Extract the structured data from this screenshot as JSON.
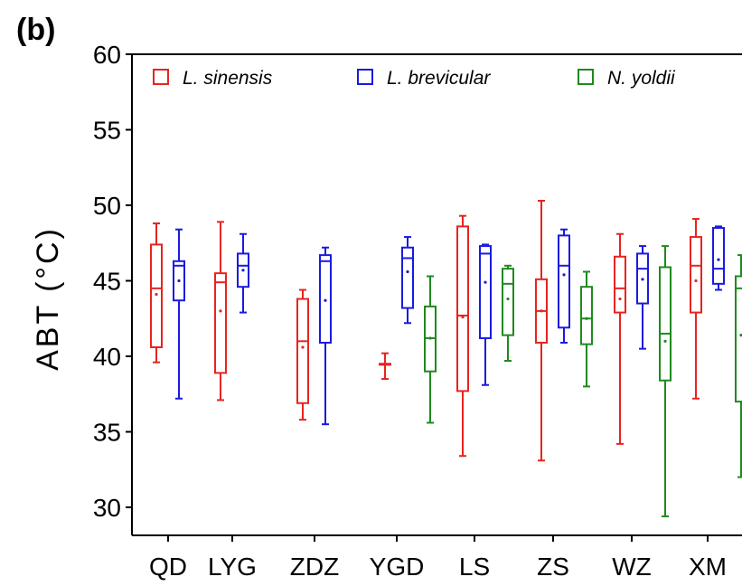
{
  "panel_label": "(b)",
  "chart_data": {
    "type": "box",
    "title": "",
    "xlabel": "",
    "ylabel": "ABT (°C)",
    "ylim": [
      30,
      60
    ],
    "yticks": [
      30,
      35,
      40,
      45,
      50,
      55,
      60
    ],
    "categories": [
      "QD",
      "LYG",
      "ZDZ",
      "YGD",
      "LS",
      "ZS",
      "WZ",
      "XM"
    ],
    "legend_position": "top",
    "series": [
      {
        "name": "L. sinensis",
        "color": "#e8231f",
        "boxes": [
          {
            "min": 39.6,
            "q1": 40.6,
            "median": 44.5,
            "mean": 44.1,
            "q3": 47.4,
            "max": 48.8
          },
          {
            "min": 37.1,
            "q1": 38.9,
            "median": 44.9,
            "mean": 43.0,
            "q3": 45.5,
            "max": 48.9
          },
          {
            "min": 35.8,
            "q1": 36.9,
            "median": 41.0,
            "mean": 40.6,
            "q3": 43.8,
            "max": 44.4
          },
          {
            "min": 38.5,
            "q1": 39.5,
            "median": 39.5,
            "mean": 39.5,
            "q3": 39.5,
            "max": 40.2
          },
          {
            "min": 33.4,
            "q1": 37.7,
            "median": 42.7,
            "mean": 42.6,
            "q3": 48.6,
            "max": 49.3
          },
          {
            "min": 33.1,
            "q1": 40.9,
            "median": 43.0,
            "mean": 43.0,
            "q3": 45.1,
            "max": 50.3
          },
          {
            "min": 34.2,
            "q1": 42.9,
            "median": 44.5,
            "mean": 43.8,
            "q3": 46.6,
            "max": 48.1
          },
          {
            "min": 37.2,
            "q1": 42.9,
            "median": 46.0,
            "mean": 45.0,
            "q3": 47.9,
            "max": 49.1
          }
        ]
      },
      {
        "name": "L. brevicular",
        "color": "#1a1adf",
        "boxes": [
          {
            "min": 37.2,
            "q1": 43.7,
            "median": 46.0,
            "mean": 45.0,
            "q3": 46.3,
            "max": 48.4
          },
          {
            "min": 42.9,
            "q1": 44.6,
            "median": 46.0,
            "mean": 45.7,
            "q3": 46.8,
            "max": 48.1
          },
          {
            "min": 35.5,
            "q1": 40.9,
            "median": 46.3,
            "mean": 43.7,
            "q3": 46.7,
            "max": 47.2
          },
          {
            "min": 42.2,
            "q1": 43.2,
            "median": 46.5,
            "mean": 45.6,
            "q3": 47.2,
            "max": 47.9
          },
          {
            "min": 38.1,
            "q1": 41.2,
            "median": 46.8,
            "mean": 44.9,
            "q3": 47.3,
            "max": 47.4
          },
          {
            "min": 40.9,
            "q1": 41.9,
            "median": 46.0,
            "mean": 45.4,
            "q3": 48.0,
            "max": 48.4
          },
          {
            "min": 40.5,
            "q1": 43.5,
            "median": 45.8,
            "mean": 45.1,
            "q3": 46.8,
            "max": 47.3
          },
          {
            "min": 44.4,
            "q1": 44.8,
            "median": 45.8,
            "mean": 46.4,
            "q3": 48.5,
            "max": 48.6
          }
        ]
      },
      {
        "name": "N. yoldii",
        "color": "#1e8a1e",
        "boxes": [
          null,
          null,
          null,
          {
            "min": 35.6,
            "q1": 39.0,
            "median": 41.2,
            "mean": 41.2,
            "q3": 43.3,
            "max": 45.3
          },
          {
            "min": 39.7,
            "q1": 41.4,
            "median": 44.8,
            "mean": 43.8,
            "q3": 45.8,
            "max": 46.0
          },
          {
            "min": 38.0,
            "q1": 40.8,
            "median": 42.5,
            "mean": 42.5,
            "q3": 44.6,
            "max": 45.6
          },
          {
            "min": 29.4,
            "q1": 38.4,
            "median": 41.5,
            "mean": 41.0,
            "q3": 45.9,
            "max": 47.3
          },
          {
            "min": 32.0,
            "q1": 37.0,
            "median": 44.5,
            "mean": 41.4,
            "q3": 45.3,
            "max": 46.7
          }
        ]
      }
    ]
  }
}
